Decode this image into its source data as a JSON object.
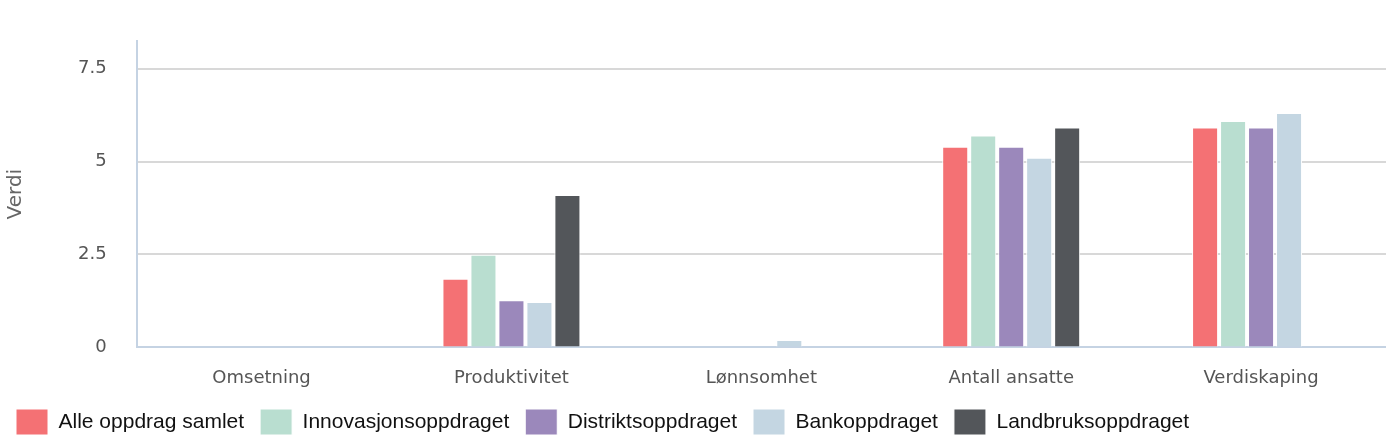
{
  "chart_data": {
    "type": "bar",
    "ylabel": "Verdi",
    "categories": [
      "Omsetning",
      "Produktivitet",
      "Lønnsomhet",
      "Antall ansatte",
      "Verdiskaping"
    ],
    "series": [
      {
        "name": "Alle oppdrag samlet",
        "color": "#f47174",
        "values": [
          null,
          1.85,
          0,
          5.4,
          5.92
        ]
      },
      {
        "name": "Innovasjonsoppdraget",
        "color": "#b9ded0",
        "values": [
          null,
          2.49,
          0,
          5.7,
          6.09
        ]
      },
      {
        "name": "Distriktsoppdraget",
        "color": "#9b88bb",
        "values": [
          null,
          1.27,
          0,
          5.4,
          5.92
        ]
      },
      {
        "name": "Bankoppdraget",
        "color": "#c4d6e2",
        "values": [
          null,
          1.22,
          0.2,
          5.1,
          6.31
        ]
      },
      {
        "name": "Landbruksoppdraget",
        "color": "#53565a",
        "values": [
          null,
          4.1,
          0,
          5.92,
          null
        ]
      }
    ],
    "ylim": [
      0,
      8.25
    ],
    "yticks": [
      0,
      2.5,
      5,
      7.5
    ],
    "grid": "y",
    "legend": "bottom"
  }
}
